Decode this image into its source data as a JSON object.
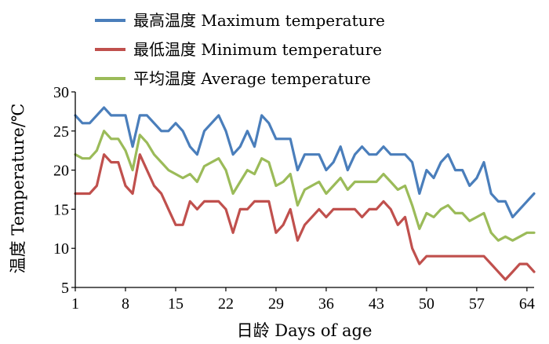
{
  "chart_data": {
    "type": "line",
    "xlabel": "日龄  Days of age",
    "ylabel": "温度  Temperature/℃",
    "xlim": [
      1,
      65
    ],
    "ylim": [
      5,
      30
    ],
    "xticks": [
      1,
      8,
      15,
      22,
      29,
      36,
      43,
      50,
      57,
      64
    ],
    "yticks": [
      5,
      10,
      15,
      20,
      25,
      30
    ],
    "legend_position": "top-left",
    "grid": false,
    "x": [
      1,
      2,
      3,
      4,
      5,
      6,
      7,
      8,
      9,
      10,
      11,
      12,
      13,
      14,
      15,
      16,
      17,
      18,
      19,
      20,
      21,
      22,
      23,
      24,
      25,
      26,
      27,
      28,
      29,
      30,
      31,
      32,
      33,
      34,
      35,
      36,
      37,
      38,
      39,
      40,
      41,
      42,
      43,
      44,
      45,
      46,
      47,
      48,
      49,
      50,
      51,
      52,
      53,
      54,
      55,
      56,
      57,
      58,
      59,
      60,
      61,
      62,
      63,
      64,
      65
    ],
    "series": [
      {
        "name": "最高温度  Maximum temperature",
        "color": "#4a7ebb",
        "values": [
          27,
          26,
          26,
          27,
          28,
          27,
          27,
          27,
          23,
          27,
          27,
          26,
          25,
          25,
          26,
          25,
          23,
          22,
          25,
          26,
          27,
          25,
          22,
          23,
          25,
          23,
          27,
          26,
          24,
          24,
          24,
          20,
          22,
          22,
          22,
          20,
          21,
          23,
          20,
          22,
          23,
          22,
          22,
          23,
          22,
          22,
          22,
          21,
          17,
          20,
          19,
          21,
          22,
          20,
          20,
          18,
          19,
          21,
          17,
          16,
          16,
          14,
          15,
          16,
          17
        ]
      },
      {
        "name": "最低温度  Minimum temperature",
        "color": "#c0504d",
        "values": [
          17,
          17,
          17,
          18,
          22,
          21,
          21,
          18,
          17,
          22,
          20,
          18,
          17,
          15,
          13,
          13,
          16,
          15,
          16,
          16,
          16,
          15,
          12,
          15,
          15,
          16,
          16,
          16,
          12,
          13,
          15,
          11,
          13,
          14,
          15,
          14,
          15,
          15,
          15,
          15,
          14,
          15,
          15,
          16,
          15,
          13,
          14,
          10,
          8,
          9,
          9,
          9,
          9,
          9,
          9,
          9,
          9,
          9,
          8,
          7,
          6,
          7,
          8,
          8,
          7
        ]
      },
      {
        "name": "平均温度  Average temperature",
        "color": "#9bbb59",
        "values": [
          22,
          21.5,
          21.5,
          22.5,
          25,
          24,
          24,
          22.5,
          20,
          24.5,
          23.5,
          22,
          21,
          20,
          19.5,
          19,
          19.5,
          18.5,
          20.5,
          21,
          21.5,
          20,
          17,
          18.5,
          20,
          19.5,
          21.5,
          21,
          18,
          18.5,
          19.5,
          15.5,
          17.5,
          18,
          18.5,
          17,
          18,
          19,
          17.5,
          18.5,
          18.5,
          18.5,
          18.5,
          19.5,
          18.5,
          17.5,
          18,
          15.5,
          12.5,
          14.5,
          14,
          15,
          15.5,
          14.5,
          14.5,
          13.5,
          14,
          14.5,
          12,
          11,
          11.5,
          11,
          11.5,
          12,
          12
        ]
      }
    ]
  }
}
